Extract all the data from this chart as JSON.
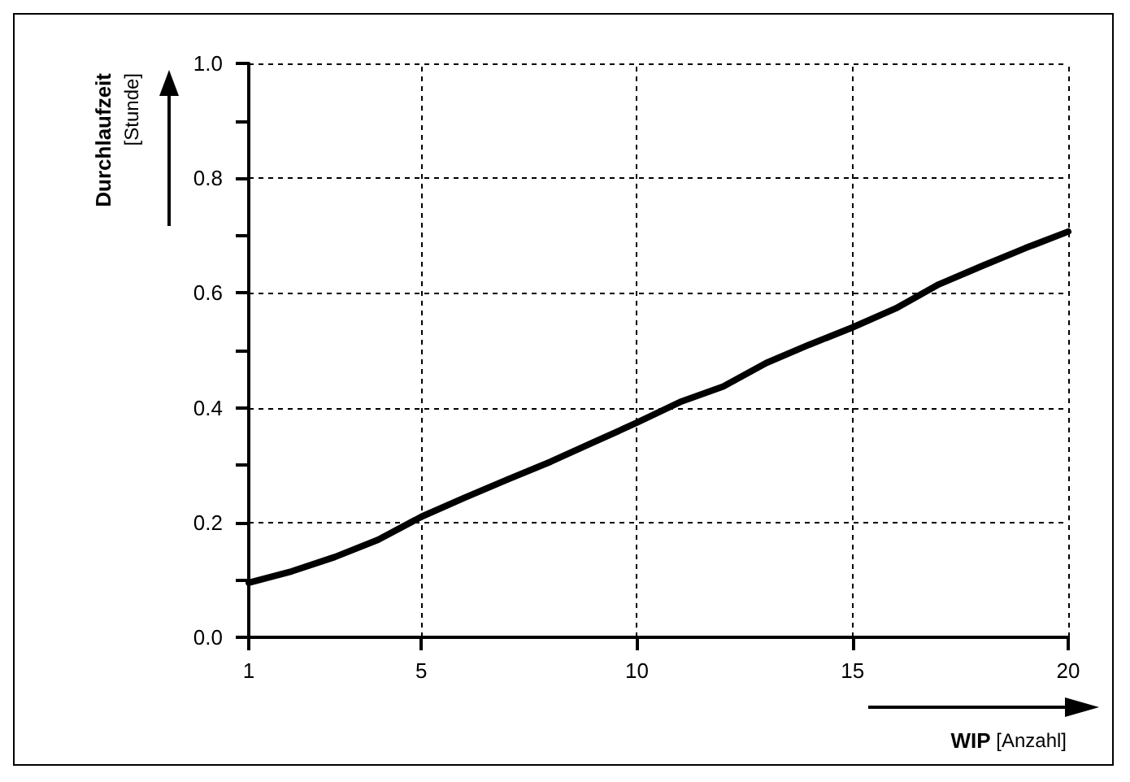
{
  "chart_data": {
    "type": "line",
    "xlabel": "WIP [Anzahl]",
    "ylabel": "Durchlaufzeit [Stunde]",
    "x": [
      1,
      2,
      3,
      4,
      5,
      6,
      7,
      8,
      9,
      10,
      11,
      12,
      13,
      14,
      15,
      16,
      17,
      18,
      19,
      20
    ],
    "series": [
      {
        "color": "#000000",
        "values": [
          0.095,
          0.115,
          0.14,
          0.17,
          0.21,
          0.243,
          0.275,
          0.306,
          0.34,
          0.374,
          0.41,
          0.437,
          0.478,
          0.51,
          0.54,
          0.573,
          0.615,
          0.647,
          0.678,
          0.707
        ]
      }
    ],
    "xlim": [
      1,
      20
    ],
    "xticks": [
      1,
      5,
      10,
      15,
      20
    ],
    "ylim": [
      0,
      1
    ],
    "yticks": [
      {
        "value": 0,
        "label": "0.0"
      },
      {
        "value": 0.1,
        "label": null
      },
      {
        "value": 0.2,
        "label": "0.2"
      },
      {
        "value": 0.3,
        "label": null
      },
      {
        "value": 0.4,
        "label": "0.4"
      },
      {
        "value": 0.5,
        "label": null
      },
      {
        "value": 0.6,
        "label": "0.6"
      },
      {
        "value": 0.7,
        "label": null
      },
      {
        "value": 0.8,
        "label": "0.8"
      },
      {
        "value": 0.9,
        "label": null
      },
      {
        "value": 1,
        "label": "1.0"
      }
    ],
    "grid": true,
    "marker": "none",
    "line_style": "solid"
  }
}
